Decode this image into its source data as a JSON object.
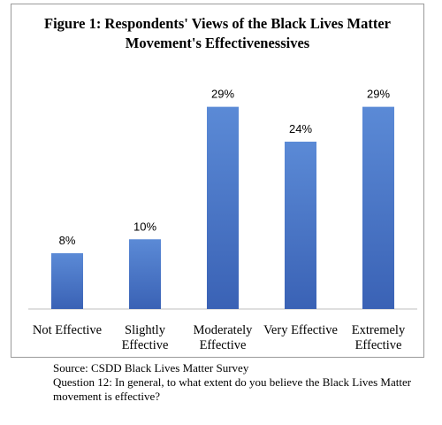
{
  "chart_data": {
    "type": "bar",
    "title": "Figure 1: Respondents' Views of the Black Lives Matter Movement's Effectivenessives",
    "categories": [
      [
        "Not Effective"
      ],
      [
        "Slightly",
        "Effective"
      ],
      [
        "Moderately",
        "Effective"
      ],
      [
        "Very Effective"
      ],
      [
        "Extremely",
        "Effective"
      ]
    ],
    "values": [
      8,
      10,
      29,
      24,
      29
    ],
    "value_labels": [
      "8%",
      "10%",
      "29%",
      "24%",
      "29%"
    ],
    "unit": "%",
    "ylim": [
      0,
      32
    ],
    "grid": false,
    "legend": "none",
    "bar_color": "#4472c4"
  },
  "notes": {
    "source": "Source: CSDD Black Lives Matter Survey",
    "question": "Question 12: In general, to what extent do you believe the Black Lives Matter movement is effective?"
  }
}
